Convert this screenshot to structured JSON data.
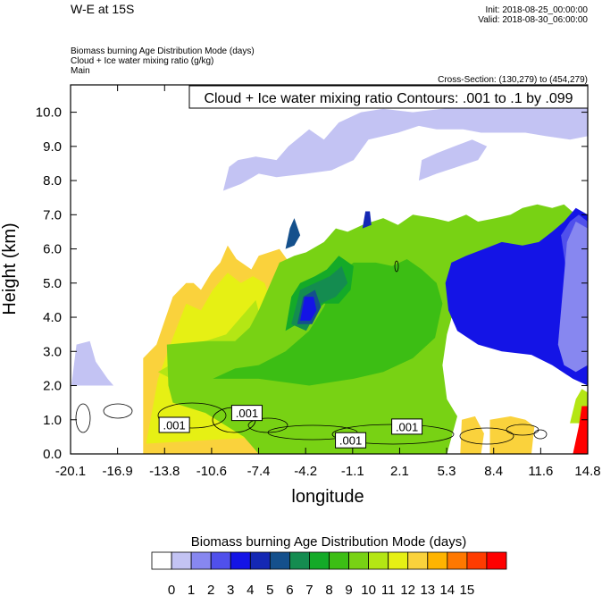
{
  "header": {
    "left_title": "W-E at 15S",
    "init": "Init: 2018-08-25_00:00:00",
    "valid": "Valid: 2018-08-30_06:00:00",
    "field_1": "Biomass burning Age Distribution Mode   (days)",
    "field_2": "Cloud + Ice water mixing ratio   (g/kg)",
    "field_3": "Main",
    "cross_section": "Cross-Section: (130,279) to (454,279)"
  },
  "chart_data": {
    "type": "heatmap",
    "title": "Cloud + Ice water mixing ratio Contours: .001 to .1 by .099",
    "xlabel": "longitude",
    "ylabel": "Height (km)",
    "x_ticks": [
      "-20.1",
      "-16.9",
      "-13.8",
      "-10.6",
      "-7.4",
      "-4.2",
      "-1.1",
      "2.1",
      "5.3",
      "8.4",
      "11.6",
      "14.8"
    ],
    "y_ticks": [
      "0.0",
      "1.0",
      "2.0",
      "3.0",
      "4.0",
      "5.0",
      "6.0",
      "7.0",
      "8.0",
      "9.0",
      "10.0"
    ],
    "xlim": [
      -20.1,
      14.8
    ],
    "ylim": [
      0.0,
      10.8
    ],
    "contour_labels": [
      {
        "text": ".001",
        "x": -13.1,
        "y": 0.85
      },
      {
        "text": ".001",
        "x": -8.2,
        "y": 1.2
      },
      {
        "text": ".001",
        "x": -1.2,
        "y": 0.4
      },
      {
        "text": ".001",
        "x": 2.6,
        "y": 0.8
      }
    ],
    "colorbar": {
      "label": "Biomass burning Age Distribution Mode  (days)",
      "ticks": [
        "0",
        "1",
        "2",
        "3",
        "4",
        "5",
        "6",
        "7",
        "8",
        "9",
        "10",
        "11",
        "12",
        "13",
        "14",
        "15"
      ],
      "colors": [
        "#ffffff",
        "#c3c3f3",
        "#8787f0",
        "#5050ec",
        "#1414e6",
        "#1428b4",
        "#14508c",
        "#148c50",
        "#14aa28",
        "#3cbe14",
        "#78d214",
        "#b4e614",
        "#e6f014",
        "#fad23c",
        "#ffb400",
        "#ff7800",
        "#ff3c00",
        "#ff0000"
      ]
    },
    "regions": [
      {
        "level": 1,
        "poly": [
          [
            -20.1,
            1.8
          ],
          [
            -19.7,
            3.2
          ],
          [
            -18.8,
            3.3
          ],
          [
            -18.4,
            2.7
          ],
          [
            -17.6,
            2.2
          ],
          [
            -17.2,
            2.0
          ],
          [
            -20.1,
            2.0
          ]
        ]
      },
      {
        "level": 13,
        "poly": [
          [
            -15.2,
            0.0
          ],
          [
            -15.2,
            2.8
          ],
          [
            -14.3,
            3.2
          ],
          [
            -13.2,
            4.6
          ],
          [
            -12.3,
            5.0
          ],
          [
            -11.8,
            5.0
          ],
          [
            -11.3,
            4.8
          ],
          [
            -10.6,
            5.3
          ],
          [
            -10.0,
            5.6
          ],
          [
            -9.5,
            6.1
          ],
          [
            -8.9,
            5.7
          ],
          [
            -7.9,
            5.4
          ],
          [
            -7.4,
            5.8
          ],
          [
            -6.0,
            6.0
          ],
          [
            -5.0,
            5.4
          ],
          [
            -4.0,
            5.6
          ],
          [
            -3.0,
            5.6
          ],
          [
            -2.0,
            5.3
          ],
          [
            -3.0,
            4.6
          ],
          [
            -4.6,
            4.0
          ],
          [
            -6.5,
            3.0
          ],
          [
            -7.0,
            1.4
          ],
          [
            -6.5,
            0.8
          ],
          [
            -6.5,
            0.0
          ]
        ]
      },
      {
        "level": 12,
        "poly": [
          [
            -15.0,
            0.3
          ],
          [
            -14.2,
            2.2
          ],
          [
            -13.2,
            3.4
          ],
          [
            -12.3,
            4.4
          ],
          [
            -11.3,
            4.2
          ],
          [
            -10.5,
            4.8
          ],
          [
            -9.5,
            5.3
          ],
          [
            -8.6,
            5.0
          ],
          [
            -7.8,
            5.2
          ],
          [
            -7.0,
            5.0
          ],
          [
            -6.3,
            4.1
          ],
          [
            -6.6,
            3.0
          ],
          [
            -7.2,
            1.6
          ],
          [
            -7.0,
            0.5
          ]
        ]
      },
      {
        "level": 11,
        "poly": [
          [
            -14.2,
            2.4
          ],
          [
            -13.4,
            2.6
          ],
          [
            -12.4,
            3.2
          ],
          [
            -11.0,
            3.3
          ],
          [
            -9.6,
            3.5
          ],
          [
            -8.6,
            4.0
          ],
          [
            -7.6,
            4.5
          ],
          [
            -7.0,
            3.5
          ],
          [
            -6.4,
            2.5
          ],
          [
            -8.0,
            2.0
          ],
          [
            -10.5,
            2.0
          ],
          [
            -12.4,
            2.0
          ]
        ]
      },
      {
        "level": 10,
        "poly": [
          [
            -13.5,
            2.0
          ],
          [
            -13.6,
            3.2
          ],
          [
            -11.0,
            3.3
          ],
          [
            -9.0,
            3.3
          ],
          [
            -8.0,
            3.7
          ],
          [
            -7.4,
            4.2
          ],
          [
            -6.6,
            5.0
          ],
          [
            -6.0,
            5.6
          ],
          [
            -5.0,
            5.8
          ],
          [
            -4.2,
            5.9
          ],
          [
            -3.0,
            6.2
          ],
          [
            -2.2,
            6.6
          ],
          [
            -1.4,
            6.5
          ],
          [
            -0.4,
            6.7
          ],
          [
            1.0,
            6.9
          ],
          [
            2.0,
            6.7
          ],
          [
            3.0,
            7.0
          ],
          [
            4.4,
            6.9
          ],
          [
            5.4,
            6.8
          ],
          [
            6.6,
            7.0
          ],
          [
            7.4,
            6.8
          ],
          [
            8.6,
            6.9
          ],
          [
            9.6,
            7.0
          ],
          [
            10.4,
            7.2
          ],
          [
            11.4,
            7.3
          ],
          [
            12.4,
            7.2
          ],
          [
            13.2,
            7.3
          ],
          [
            14.0,
            7.0
          ],
          [
            13.8,
            6.6
          ],
          [
            12.5,
            6.0
          ],
          [
            11.0,
            5.5
          ],
          [
            8.0,
            5.0
          ],
          [
            6.0,
            4.6
          ],
          [
            5.3,
            3.5
          ],
          [
            5.0,
            2.6
          ],
          [
            5.3,
            1.6
          ],
          [
            6.0,
            1.1
          ],
          [
            5.3,
            0.0
          ],
          [
            -7.4,
            0.0
          ],
          [
            -8.4,
            0.5
          ],
          [
            -11.0,
            1.2
          ],
          [
            -13.2,
            1.5
          ]
        ]
      },
      {
        "level": 9,
        "poly": [
          [
            -10.5,
            2.2
          ],
          [
            -9.0,
            2.5
          ],
          [
            -7.4,
            2.6
          ],
          [
            -5.6,
            3.0
          ],
          [
            -4.0,
            3.6
          ],
          [
            -3.0,
            4.3
          ],
          [
            -2.0,
            5.3
          ],
          [
            -1.0,
            5.6
          ],
          [
            0.5,
            5.6
          ],
          [
            1.6,
            5.5
          ],
          [
            2.6,
            5.7
          ],
          [
            3.6,
            5.4
          ],
          [
            4.6,
            5.0
          ],
          [
            5.0,
            4.4
          ],
          [
            4.5,
            3.4
          ],
          [
            3.0,
            2.8
          ],
          [
            1.0,
            2.4
          ],
          [
            -1.0,
            2.2
          ],
          [
            -4.0,
            2.0
          ],
          [
            -7.4,
            2.2
          ]
        ]
      },
      {
        "level": 8,
        "poly": [
          [
            -5.6,
            3.6
          ],
          [
            -5.2,
            4.6
          ],
          [
            -4.6,
            5.0
          ],
          [
            -3.6,
            5.2
          ],
          [
            -2.8,
            5.4
          ],
          [
            -2.0,
            5.8
          ],
          [
            -1.0,
            5.5
          ],
          [
            -1.2,
            4.8
          ],
          [
            -2.0,
            4.4
          ],
          [
            -3.0,
            4.4
          ],
          [
            -4.0,
            4.0
          ]
        ]
      },
      {
        "level": 7,
        "poly": [
          [
            -5.2,
            3.8
          ],
          [
            -4.6,
            4.8
          ],
          [
            -3.6,
            5.0
          ],
          [
            -2.6,
            5.2
          ],
          [
            -1.8,
            5.5
          ],
          [
            -1.4,
            5.0
          ],
          [
            -2.2,
            4.6
          ],
          [
            -3.2,
            4.4
          ],
          [
            -4.2,
            3.6
          ]
        ]
      },
      {
        "level": 6,
        "poly": [
          [
            -4.8,
            3.8
          ],
          [
            -4.4,
            4.6
          ],
          [
            -3.6,
            4.8
          ],
          [
            -3.2,
            4.3
          ],
          [
            -3.8,
            3.8
          ]
        ]
      },
      {
        "level": 4,
        "poly": [
          [
            -4.6,
            3.9
          ],
          [
            -4.3,
            4.6
          ],
          [
            -3.7,
            4.6
          ],
          [
            -3.5,
            4.2
          ],
          [
            -3.9,
            3.9
          ]
        ]
      },
      {
        "level": 6,
        "poly": [
          [
            -5.6,
            6.0
          ],
          [
            -5.3,
            6.6
          ],
          [
            -5.0,
            6.9
          ],
          [
            -4.6,
            6.4
          ],
          [
            -5.0,
            6.1
          ]
        ]
      },
      {
        "level": 5,
        "poly": [
          [
            -0.4,
            6.6
          ],
          [
            -0.2,
            7.1
          ],
          [
            0.1,
            7.1
          ],
          [
            0.2,
            6.7
          ]
        ]
      },
      {
        "level": 4,
        "poly": [
          [
            5.2,
            5.0
          ],
          [
            5.6,
            5.6
          ],
          [
            6.6,
            5.8
          ],
          [
            7.8,
            6.0
          ],
          [
            9.0,
            6.2
          ],
          [
            10.4,
            6.1
          ],
          [
            11.5,
            6.2
          ],
          [
            12.4,
            6.5
          ],
          [
            13.2,
            6.8
          ],
          [
            14.0,
            7.2
          ],
          [
            14.8,
            7.0
          ],
          [
            14.8,
            2.0
          ],
          [
            13.8,
            2.2
          ],
          [
            12.4,
            2.6
          ],
          [
            11.0,
            2.9
          ],
          [
            9.0,
            3.0
          ],
          [
            7.4,
            3.2
          ],
          [
            6.0,
            3.6
          ],
          [
            5.4,
            4.2
          ]
        ]
      },
      {
        "level": 3,
        "poly": [
          [
            13.0,
            6.4
          ],
          [
            13.6,
            6.8
          ],
          [
            14.2,
            7.0
          ],
          [
            14.8,
            6.8
          ],
          [
            14.8,
            3.5
          ],
          [
            14.2,
            4.0
          ],
          [
            13.6,
            4.6
          ]
        ]
      },
      {
        "level": 2,
        "poly": [
          [
            13.4,
            6.2
          ],
          [
            14.0,
            6.8
          ],
          [
            14.8,
            6.6
          ],
          [
            14.8,
            2.6
          ],
          [
            14.0,
            2.4
          ],
          [
            13.2,
            2.6
          ],
          [
            12.8,
            3.2
          ]
        ]
      },
      {
        "level": 1,
        "poly": [
          [
            -9.8,
            7.7
          ],
          [
            -9.4,
            8.4
          ],
          [
            -8.8,
            8.6
          ],
          [
            -7.6,
            8.7
          ],
          [
            -6.2,
            8.6
          ],
          [
            -5.4,
            9.0
          ],
          [
            -4.0,
            9.5
          ],
          [
            -3.0,
            9.2
          ],
          [
            -2.0,
            9.7
          ],
          [
            -0.5,
            10.0
          ],
          [
            1.0,
            10.1
          ],
          [
            3.0,
            10.0
          ],
          [
            5.0,
            10.1
          ],
          [
            7.0,
            10.2
          ],
          [
            9.0,
            10.3
          ],
          [
            11.0,
            10.2
          ],
          [
            13.0,
            10.1
          ],
          [
            14.8,
            10.2
          ],
          [
            14.8,
            9.3
          ],
          [
            13.6,
            9.2
          ],
          [
            12.0,
            9.3
          ],
          [
            10.6,
            9.4
          ],
          [
            9.0,
            9.4
          ],
          [
            7.6,
            9.4
          ],
          [
            6.4,
            9.5
          ],
          [
            4.6,
            9.5
          ],
          [
            3.4,
            9.6
          ],
          [
            2.0,
            9.4
          ],
          [
            0.0,
            9.2
          ],
          [
            -1.0,
            8.6
          ],
          [
            -2.5,
            8.3
          ],
          [
            -4.2,
            8.2
          ],
          [
            -6.2,
            8.1
          ],
          [
            -7.4,
            8.2
          ],
          [
            -8.6,
            7.9
          ]
        ]
      },
      {
        "level": 1,
        "poly": [
          [
            3.4,
            8.0
          ],
          [
            3.6,
            8.6
          ],
          [
            4.6,
            8.8
          ],
          [
            5.8,
            9.0
          ],
          [
            7.0,
            9.2
          ],
          [
            8.0,
            9.0
          ],
          [
            7.4,
            8.6
          ],
          [
            6.0,
            8.4
          ],
          [
            4.6,
            8.2
          ]
        ]
      },
      {
        "level": 11,
        "poly": [
          [
            13.6,
            0.9
          ],
          [
            14.0,
            1.6
          ],
          [
            14.4,
            1.9
          ],
          [
            14.8,
            1.8
          ],
          [
            14.8,
            0.9
          ]
        ]
      },
      {
        "level": 17,
        "poly": [
          [
            13.8,
            0.0
          ],
          [
            14.2,
            0.8
          ],
          [
            14.4,
            1.4
          ],
          [
            14.8,
            1.4
          ],
          [
            14.8,
            0.0
          ]
        ]
      },
      {
        "level": 13,
        "poly": [
          [
            8.2,
            0.0
          ],
          [
            8.2,
            1.0
          ],
          [
            9.6,
            1.1
          ],
          [
            10.6,
            1.0
          ],
          [
            11.2,
            0.8
          ],
          [
            11.0,
            0.0
          ]
        ]
      },
      {
        "level": 13,
        "poly": [
          [
            6.2,
            0.0
          ],
          [
            6.3,
            1.0
          ],
          [
            7.2,
            1.1
          ],
          [
            7.8,
            0.6
          ],
          [
            7.6,
            0.0
          ]
        ]
      }
    ]
  }
}
